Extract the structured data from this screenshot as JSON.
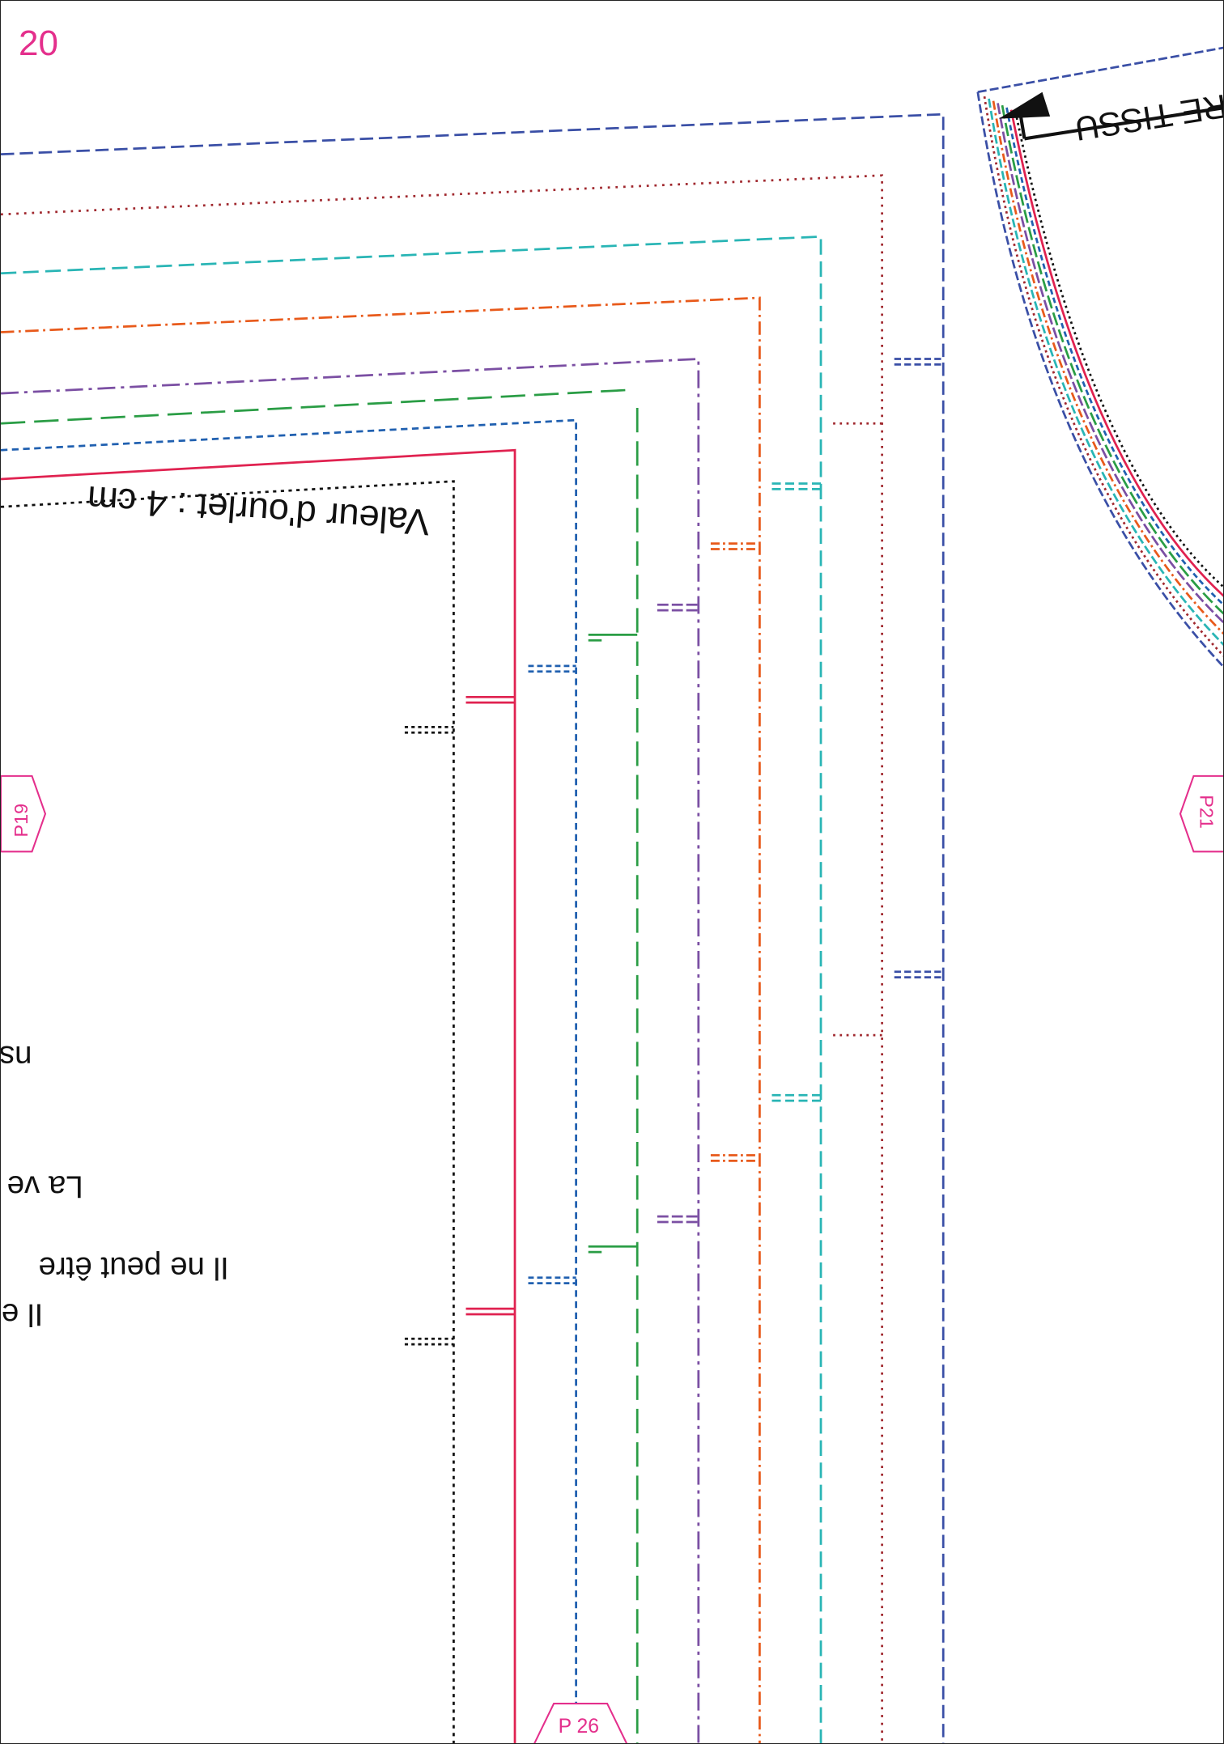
{
  "page": {
    "number": "20"
  },
  "hem_note": "Valeur d'ourlet : 4 cm",
  "grain_label": "RE TISSU",
  "body_fragments": [
    "ns",
    "La ve",
    "Il ne peut être",
    "Il e"
  ],
  "markers": {
    "left": "P19",
    "right": "P21",
    "bottom": "P 26"
  },
  "colors": {
    "accent": "#e42f8c",
    "size_lines": [
      "#3a4fa6",
      "#a0282e",
      "#29b5b5",
      "#e85a1b",
      "#7b4fa3",
      "#2a9d45",
      "#2060b0",
      "#e02250",
      "#111111"
    ]
  }
}
